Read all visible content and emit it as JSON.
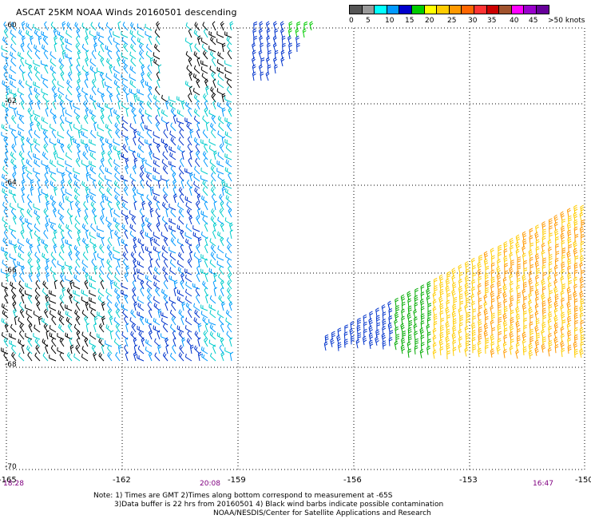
{
  "title": "ASCAT 25KM NOAA Winds 20160501 descending",
  "legend": {
    "colors": [
      "#555555",
      "#999999",
      "#00ffff",
      "#0099ff",
      "#0000cc",
      "#00cc00",
      "#ffff00",
      "#ffcc00",
      "#ff9900",
      "#ff6600",
      "#ff3333",
      "#cc0000",
      "#a0522d",
      "#ff00ff",
      "#9900cc",
      "#660099"
    ],
    "labels": [
      "0",
      "5",
      "10",
      "15",
      "20",
      "25",
      "30",
      "35",
      "40",
      "45",
      ">50 knots"
    ]
  },
  "axes": {
    "lat_labels": [
      "-60",
      "-62",
      "-64",
      "-66",
      "-68",
      "-70"
    ],
    "lon_labels": [
      "-165",
      "-162",
      "-159",
      "-156",
      "-153",
      "-150"
    ],
    "lat_range": [
      -70,
      -60
    ],
    "lon_range": [
      -165,
      -150
    ]
  },
  "time_labels": [
    "18:28",
    "20:08",
    "16:47"
  ],
  "notes": {
    "line1": "Note: 1) Times are GMT 2)Times along bottom correspond to measurement at -65S",
    "line2": "3)Data buffer is 22 hrs from 20160501 4) Black wind barbs indicate possible contamination",
    "line3": "NOAA/NESDIS/Center for Satellite Applications and Research"
  }
}
